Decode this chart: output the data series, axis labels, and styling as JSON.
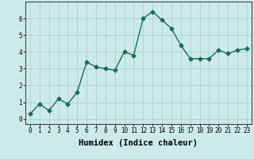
{
  "xlabel": "Humidex (Indice chaleur)",
  "ylabel": "",
  "x": [
    0,
    1,
    2,
    3,
    4,
    5,
    6,
    7,
    8,
    9,
    10,
    11,
    12,
    13,
    14,
    15,
    16,
    17,
    18,
    19,
    20,
    21,
    22,
    23
  ],
  "y": [
    0.3,
    0.9,
    0.5,
    1.2,
    0.9,
    1.6,
    3.4,
    3.1,
    3.0,
    2.9,
    4.0,
    3.8,
    6.0,
    6.4,
    5.9,
    5.4,
    4.4,
    3.6,
    3.6,
    3.6,
    4.1,
    3.9,
    4.1,
    4.2
  ],
  "line_color": "#1a6b5a",
  "marker": "D",
  "marker_size": 2.5,
  "bg_color": "#cceaea",
  "grid_color": "#aad0d0",
  "ylim": [
    -0.3,
    7.0
  ],
  "xlim": [
    -0.5,
    23.5
  ],
  "yticks": [
    0,
    1,
    2,
    3,
    4,
    5,
    6
  ],
  "xticks": [
    0,
    1,
    2,
    3,
    4,
    5,
    6,
    7,
    8,
    9,
    10,
    11,
    12,
    13,
    14,
    15,
    16,
    17,
    18,
    19,
    20,
    21,
    22,
    23
  ],
  "tick_fontsize": 5.5,
  "xlabel_fontsize": 7.5,
  "line_width": 1.0
}
